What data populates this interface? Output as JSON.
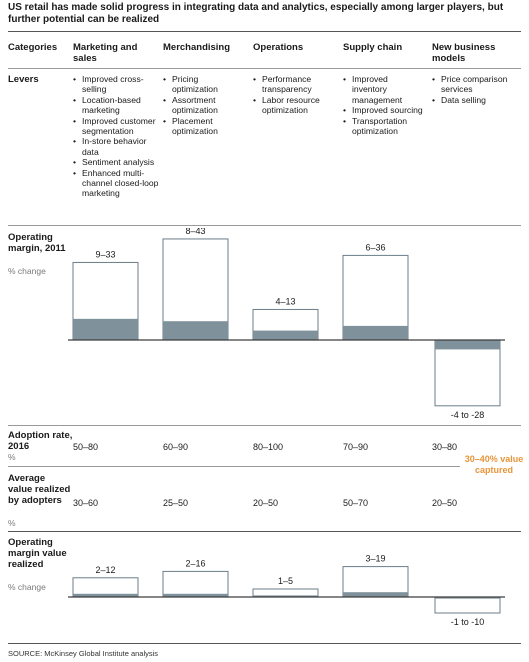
{
  "title": "US retail has made solid progress in integrating data and analytics, especially among larger players, but further potential can be realized",
  "columns": {
    "label": "Categories",
    "items": [
      "Marketing and sales",
      "Merchandising",
      "Operations",
      "Supply chain",
      "New business models"
    ]
  },
  "levers": {
    "label": "Levers",
    "items": [
      [
        "Improved cross-selling",
        "Location-based marketing",
        "Improved customer segmentation",
        "In-store behavior data",
        "Sentiment analysis",
        "Enhanced multi-channel closed-loop marketing"
      ],
      [
        "Pricing optimization",
        "Assortment optimization",
        "Placement optimization"
      ],
      [
        "Performance transparency",
        "Labor resource optimization"
      ],
      [
        "Improved inventory management",
        "Improved sourcing",
        "Transportation optimization"
      ],
      [
        "Price comparison services",
        "Data selling"
      ]
    ]
  },
  "rows": {
    "margin_label": "Operating margin, 2011",
    "margin_unit": "% change",
    "adoption_label": "Adoption rate, 2016",
    "adoption_unit": "%",
    "adoption_values": [
      "50–80",
      "60–90",
      "80–100",
      "70–90",
      "30–80"
    ],
    "avg_label": "Average value realized by adopters",
    "avg_unit": "%",
    "avg_values": [
      "30–60",
      "25–50",
      "20–50",
      "50–70",
      "20–50"
    ],
    "realized_label": "Operating margin value realized",
    "realized_unit": "% change",
    "captured_note": "30–40% value captured"
  },
  "chart_data": [
    {
      "type": "bar",
      "title": "Operating margin, 2011",
      "ylabel": "% change",
      "categories": [
        "Marketing and sales",
        "Merchandising",
        "Operations",
        "Supply chain",
        "New business models"
      ],
      "range_labels": [
        "9–33",
        "8–43",
        "4–13",
        "6–36",
        "-4 to -28"
      ],
      "series": [
        {
          "name": "low",
          "values": [
            9,
            8,
            4,
            6,
            -4
          ]
        },
        {
          "name": "high",
          "values": [
            33,
            43,
            13,
            36,
            -28
          ]
        }
      ]
    },
    {
      "type": "bar",
      "title": "Operating margin value realized",
      "ylabel": "% change",
      "categories": [
        "Marketing and sales",
        "Merchandising",
        "Operations",
        "Supply chain",
        "New business models"
      ],
      "range_labels": [
        "2–12",
        "2–16",
        "1–5",
        "3–19",
        "-1 to -10"
      ],
      "series": [
        {
          "name": "low",
          "values": [
            2,
            2,
            1,
            3,
            -1
          ]
        },
        {
          "name": "high",
          "values": [
            12,
            16,
            5,
            19,
            -10
          ]
        }
      ]
    }
  ],
  "colors": {
    "bar_fill": "#7f919b",
    "bar_outline": "#6c7d88",
    "baseline": "#3d3d3d",
    "accent": "#e8953a"
  },
  "source": "SOURCE: McKinsey Global Institute analysis"
}
